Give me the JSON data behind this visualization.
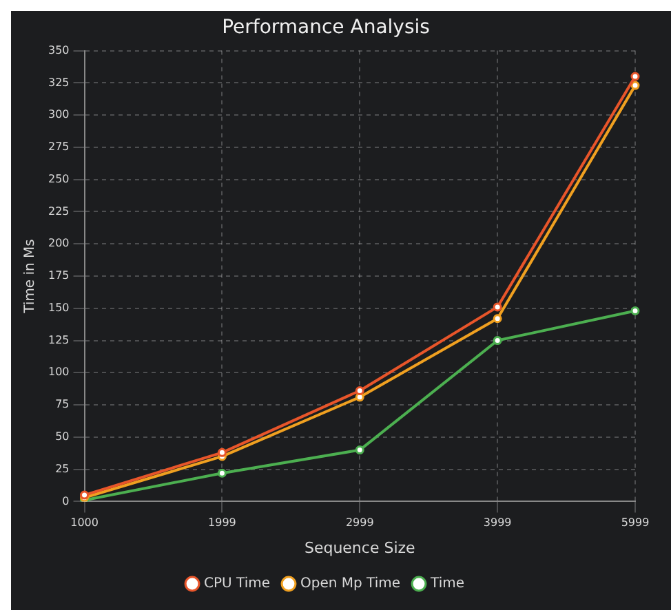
{
  "chart_data": {
    "type": "line",
    "title": "Performance Analysis",
    "xlabel": "Sequence Size",
    "ylabel": "Time in Ms",
    "categories": [
      "1000",
      "1999",
      "2999",
      "3999",
      "5999"
    ],
    "series": [
      {
        "name": "CPU Time",
        "color": "#e8552a",
        "values": [
          5,
          38,
          86,
          151,
          330
        ]
      },
      {
        "name": "Open Mp Time",
        "color": "#f0a020",
        "values": [
          3,
          35,
          81,
          142,
          323
        ]
      },
      {
        "name": "Time",
        "color": "#4caf50",
        "values": [
          1,
          22,
          40,
          125,
          148
        ]
      }
    ],
    "ylim": [
      0,
      350
    ],
    "yticks": [
      0,
      25,
      50,
      75,
      100,
      125,
      150,
      175,
      200,
      225,
      250,
      275,
      300,
      325,
      350
    ],
    "grid": true,
    "legend": "bottom",
    "marker": "circle",
    "line_style": "solid"
  }
}
